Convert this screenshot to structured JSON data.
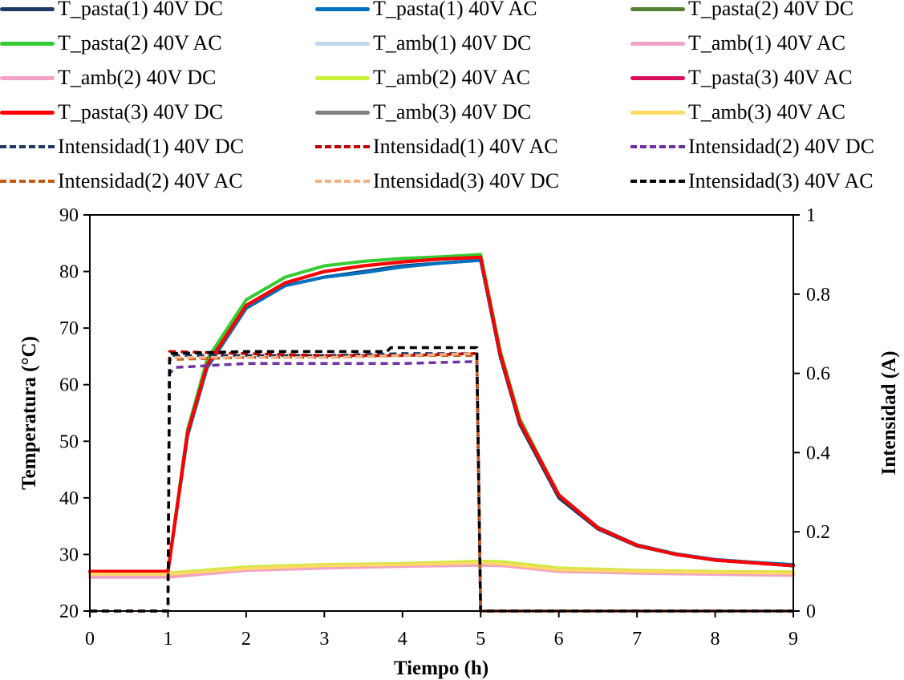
{
  "chart_data": {
    "type": "line",
    "title": "",
    "xlabel": "Tiempo (h)",
    "ylabel": "Temperatura (°C)",
    "y2label": "Intensidad (A)",
    "xlim": [
      0,
      9
    ],
    "ylim": [
      20,
      90
    ],
    "y2lim": [
      0,
      1
    ],
    "xticks": [
      "0",
      "1",
      "2",
      "3",
      "4",
      "5",
      "6",
      "7",
      "8",
      "9"
    ],
    "yticks": [
      "20",
      "30",
      "40",
      "50",
      "60",
      "70",
      "80",
      "90"
    ],
    "y2ticks": [
      "0",
      "0.2",
      "0.4",
      "0.6",
      "0.8",
      "1"
    ],
    "grid": false,
    "legend_position": "top",
    "series": [
      {
        "name": "T_pasta(1) 40V DC",
        "color": "#203864",
        "dash": false,
        "axis": "left",
        "x": [
          0,
          1,
          1.25,
          1.5,
          2,
          2.5,
          3,
          3.5,
          4,
          4.5,
          5,
          5.25,
          5.5,
          6,
          6.5,
          7,
          7.5,
          8,
          8.5,
          9
        ],
        "y": [
          27,
          27,
          51,
          63,
          73.5,
          77.5,
          79,
          80,
          81,
          81.5,
          82,
          65,
          53,
          40,
          34.5,
          31.5,
          30,
          29,
          28.5,
          28
        ]
      },
      {
        "name": "T_pasta(1) 40V AC",
        "color": "#0070C0",
        "dash": false,
        "axis": "left",
        "x": [
          0,
          1,
          1.25,
          1.5,
          2,
          2.5,
          3,
          3.5,
          4,
          4.5,
          5,
          5.25,
          5.5,
          6,
          6.5,
          7,
          7.5,
          8,
          8.5,
          9
        ],
        "y": [
          27,
          27,
          51,
          63,
          73.5,
          77.5,
          79,
          79.8,
          80.8,
          81.5,
          82,
          65.5,
          53.5,
          40.5,
          34.8,
          31.7,
          30.1,
          29.1,
          28.6,
          28.2
        ]
      },
      {
        "name": "T_pasta(2) 40V DC",
        "color": "#548235",
        "dash": false,
        "axis": "left",
        "x": [
          0,
          1,
          1.25,
          1.5,
          2,
          2.5,
          3,
          3.5,
          4,
          4.5,
          5,
          5.25,
          5.5,
          6,
          6.5,
          7,
          7.5,
          8,
          8.5,
          9
        ],
        "y": [
          27,
          27,
          51.5,
          63.5,
          74,
          78,
          80,
          81,
          81.7,
          82.2,
          82.5,
          65.5,
          53.5,
          40.5,
          34.7,
          31.6,
          30,
          29,
          28.5,
          28
        ]
      },
      {
        "name": "T_pasta(2) 40V AC",
        "color": "#33CC33",
        "dash": false,
        "axis": "left",
        "x": [
          0,
          1,
          1.25,
          1.5,
          2,
          2.5,
          3,
          3.5,
          4,
          4.5,
          5,
          5.25,
          5.5,
          6,
          6.5,
          7,
          7.5,
          8,
          8.5,
          9
        ],
        "y": [
          27,
          27,
          52,
          64.5,
          75,
          79,
          81,
          81.8,
          82.3,
          82.6,
          83,
          66,
          54,
          40.5,
          34.7,
          31.6,
          30,
          29,
          28.5,
          28
        ]
      },
      {
        "name": "T_amb(1) 40V DC",
        "color": "#BDD7EE",
        "dash": false,
        "axis": "left",
        "x": [
          0,
          1,
          2,
          3,
          4,
          5,
          5.3,
          6,
          7,
          8,
          9
        ],
        "y": [
          26.5,
          26.5,
          27.5,
          28,
          28.2,
          28.5,
          28.3,
          27.3,
          27,
          26.8,
          26.7
        ]
      },
      {
        "name": "T_amb(1) 40V AC",
        "color": "#F4A1C9",
        "dash": false,
        "axis": "left",
        "x": [
          0,
          1,
          2,
          3,
          4,
          5,
          5.3,
          6,
          7,
          8,
          9
        ],
        "y": [
          26,
          26,
          27.2,
          27.6,
          27.9,
          28.1,
          28,
          27,
          26.7,
          26.5,
          26.3
        ]
      },
      {
        "name": "T_amb(2) 40V DC",
        "color": "#F4A1C9",
        "dash": false,
        "axis": "left",
        "x": [
          0,
          1,
          2,
          3,
          4,
          5,
          5.3,
          6,
          7,
          8,
          9
        ],
        "y": [
          26.2,
          26.2,
          27.3,
          27.7,
          28,
          28.2,
          28.1,
          27.1,
          26.8,
          26.6,
          26.4
        ]
      },
      {
        "name": "T_amb(2) 40V AC",
        "color": "#CCF03C",
        "dash": false,
        "axis": "left",
        "x": [
          0,
          1,
          2,
          3,
          4,
          5,
          5.3,
          6,
          7,
          8,
          9
        ],
        "y": [
          26.7,
          26.7,
          27.8,
          28.2,
          28.4,
          28.8,
          28.7,
          27.6,
          27.2,
          27,
          26.9
        ]
      },
      {
        "name": "T_pasta(3) 40V AC",
        "color": "#D6105E",
        "dash": false,
        "axis": "left",
        "x": [
          0,
          1,
          1.25,
          1.5,
          2,
          2.5,
          3,
          3.5,
          4,
          4.5,
          5,
          5.25,
          5.5,
          6,
          6.5,
          7,
          7.5,
          8,
          8.5,
          9
        ],
        "y": [
          27,
          27,
          51.5,
          63.5,
          74,
          78,
          80,
          81,
          81.7,
          82.2,
          82.5,
          65.5,
          53.5,
          40.5,
          34.7,
          31.6,
          30,
          29,
          28.5,
          28
        ]
      },
      {
        "name": "T_pasta(3) 40V DC",
        "color": "#FF0000",
        "dash": false,
        "axis": "left",
        "x": [
          0,
          1,
          1.25,
          1.5,
          2,
          2.5,
          3,
          3.5,
          4,
          4.5,
          5,
          5.25,
          5.5,
          6,
          6.5,
          7,
          7.5,
          8,
          8.5,
          9
        ],
        "y": [
          27,
          27,
          51.5,
          63.5,
          74,
          78,
          80,
          81,
          81.7,
          82.2,
          82.5,
          65.5,
          53.5,
          40.5,
          34.7,
          31.6,
          30,
          29,
          28.5,
          28
        ]
      },
      {
        "name": "T_amb(3) 40V DC",
        "color": "#808080",
        "dash": false,
        "axis": "left",
        "x": [
          0,
          1,
          2,
          3,
          4,
          5,
          5.3,
          6,
          7,
          8,
          9
        ],
        "y": [
          26.5,
          26.5,
          27.5,
          28,
          28.2,
          28.5,
          28.3,
          27.3,
          27,
          26.8,
          26.7
        ]
      },
      {
        "name": "T_amb(3) 40V AC",
        "color": "#FFD966",
        "dash": false,
        "axis": "left",
        "x": [
          0,
          1,
          2,
          3,
          4,
          5,
          5.3,
          6,
          7,
          8,
          9
        ],
        "y": [
          26.5,
          26.5,
          27.5,
          28,
          28.2,
          28.5,
          28.3,
          27.3,
          27,
          26.8,
          26.7
        ]
      },
      {
        "name": "Intensidad(1) 40V DC",
        "color": "#203864",
        "dash": true,
        "axis": "right",
        "x": [
          0,
          1,
          1.02,
          2,
          3,
          4,
          4.95,
          5,
          9
        ],
        "y": [
          0,
          0,
          0.645,
          0.645,
          0.645,
          0.65,
          0.65,
          0,
          0
        ]
      },
      {
        "name": "Intensidad(1) 40V AC",
        "color": "#C00000",
        "dash": true,
        "axis": "right",
        "x": [
          0,
          1,
          1.02,
          2,
          3,
          4,
          4.95,
          5,
          9
        ],
        "y": [
          0,
          0,
          0.655,
          0.65,
          0.645,
          0.645,
          0.65,
          0,
          0
        ]
      },
      {
        "name": "Intensidad(2) 40V DC",
        "color": "#7030A0",
        "dash": true,
        "axis": "right",
        "x": [
          0,
          1,
          1.02,
          1.1,
          2,
          3,
          4,
          4.95,
          5,
          9
        ],
        "y": [
          0,
          0,
          0.6,
          0.615,
          0.625,
          0.625,
          0.625,
          0.63,
          0,
          0
        ]
      },
      {
        "name": "Intensidad(2) 40V AC",
        "color": "#C55A11",
        "dash": true,
        "axis": "right",
        "x": [
          0,
          1,
          1.02,
          2,
          3,
          4,
          4.95,
          5,
          9
        ],
        "y": [
          0,
          0,
          0.635,
          0.64,
          0.64,
          0.645,
          0.645,
          0,
          0
        ]
      },
      {
        "name": "Intensidad(3) 40V DC",
        "color": "#F4B183",
        "dash": true,
        "axis": "right",
        "x": [
          0,
          1,
          1.02,
          2,
          3,
          4,
          4.95,
          5,
          9
        ],
        "y": [
          0,
          0,
          0.64,
          0.64,
          0.64,
          0.645,
          0.65,
          0,
          0
        ]
      },
      {
        "name": "Intensidad(3) 40V AC",
        "color": "#000000",
        "dash": true,
        "axis": "right",
        "x": [
          0,
          1,
          1.02,
          2,
          3,
          3.8,
          3.85,
          4.95,
          5,
          9
        ],
        "y": [
          0,
          0,
          0.65,
          0.655,
          0.655,
          0.655,
          0.665,
          0.665,
          0,
          0
        ]
      }
    ]
  }
}
